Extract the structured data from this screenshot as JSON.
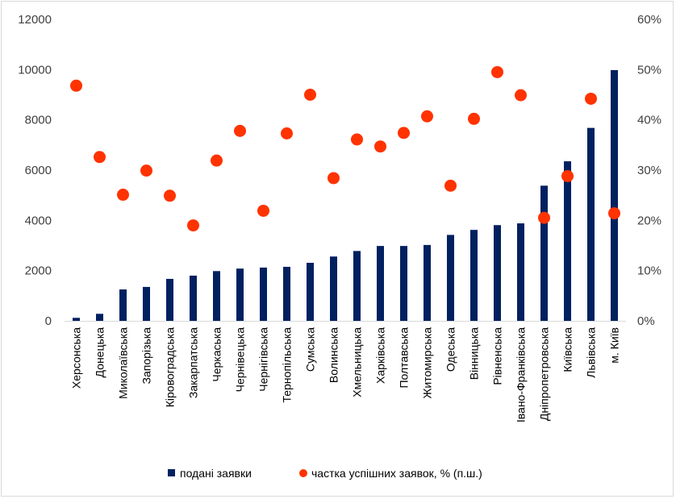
{
  "chart_data": {
    "type": "bar",
    "categories": [
      "Херсонська",
      "Донецька",
      "Миколаївська",
      "Запорізька",
      "Кіровоградська",
      "Закарпатська",
      "Черкаська",
      "Чернівецька",
      "Чернігівська",
      "Тернопільська",
      "Сумська",
      "Волинська",
      "Хмельницька",
      "Харківська",
      "Полтавська",
      "Житомирська",
      "Одеська",
      "Вінницька",
      "Рівненська",
      "Івано-Франківська",
      "Дніпропетровська",
      "Київська",
      "Львівська",
      "м. Київ"
    ],
    "series": [
      {
        "name": "подані заявки",
        "type": "bar",
        "axis": "left",
        "color": "#002060",
        "values": [
          120,
          280,
          1250,
          1350,
          1670,
          1800,
          1980,
          2080,
          2120,
          2150,
          2310,
          2560,
          2780,
          2980,
          2980,
          3020,
          3420,
          3620,
          3810,
          3880,
          5380,
          6350,
          7680,
          9980
        ]
      },
      {
        "name": "частка успішних заявок, % (п.ш.)",
        "type": "scatter",
        "axis": "right",
        "color": "#FF3300",
        "values": [
          46.8,
          32.6,
          25.1,
          29.9,
          24.9,
          19.0,
          31.9,
          37.8,
          21.9,
          37.3,
          45.0,
          28.4,
          36.1,
          34.7,
          37.4,
          40.7,
          26.9,
          40.2,
          49.5,
          44.9,
          20.5,
          28.8,
          44.2,
          21.4
        ]
      }
    ],
    "y_left": {
      "min": 0,
      "max": 12000,
      "ticks": [
        "0",
        "2000",
        "4000",
        "6000",
        "8000",
        "10000",
        "12000"
      ]
    },
    "y_right": {
      "min": 0,
      "max": 60,
      "ticks": [
        "0%",
        "10%",
        "20%",
        "30%",
        "40%",
        "50%",
        "60%"
      ]
    },
    "legend": {
      "placement": "bottom"
    },
    "grid": false
  }
}
